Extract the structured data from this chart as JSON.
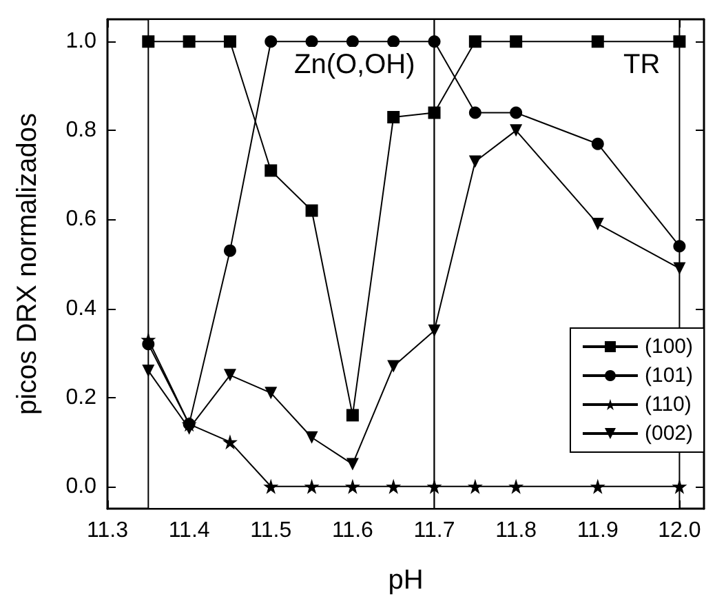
{
  "chart_data": {
    "type": "line",
    "xlabel": "pH",
    "ylabel": "picos DRX normalizados",
    "x": [
      11.35,
      11.4,
      11.45,
      11.5,
      11.55,
      11.6,
      11.65,
      11.7,
      11.75,
      11.8,
      11.9,
      12.0
    ],
    "series": [
      {
        "name": "(100)",
        "color": "#000000",
        "marker": "square",
        "values": [
          1,
          1,
          1,
          0.71,
          0.62,
          0.16,
          0.83,
          0.84,
          1,
          1,
          1,
          1
        ]
      },
      {
        "name": "(101)",
        "color": "#000000",
        "marker": "circle",
        "values": [
          0.32,
          0.14,
          0.53,
          1,
          1,
          1,
          1,
          1,
          0.84,
          0.84,
          0.77,
          0.54
        ]
      },
      {
        "name": "(110)",
        "color": "#000000",
        "marker": "star",
        "values": [
          0.33,
          0.14,
          0.1,
          0,
          0,
          0,
          0,
          0,
          0,
          0,
          0,
          0
        ]
      },
      {
        "name": "(002)",
        "color": "#000000",
        "marker": "triangle",
        "values": [
          0.26,
          0.13,
          0.25,
          0.21,
          0.11,
          0.05,
          0.27,
          0.35,
          0.73,
          0.8,
          0.59,
          0.49
        ]
      }
    ],
    "xlim": [
      11.3,
      12.03
    ],
    "xticks": [
      11.3,
      11.4,
      11.5,
      11.6,
      11.7,
      11.8,
      11.9,
      {
        "value": 12,
        "label": "12.0"
      }
    ],
    "ylim": [
      -0.05,
      1.05
    ],
    "yticks": [
      {
        "value": 0,
        "label": "0.0"
      },
      0.2,
      0.4,
      0.6,
      0.8,
      {
        "value": 1,
        "label": "1.0"
      }
    ],
    "bands": [
      {
        "axis": "x",
        "from": 11.35,
        "to": 11.7,
        "label": "Zn(O,OH)"
      },
      {
        "axis": "x",
        "from": 11.7,
        "to": 12.0,
        "label": "TR"
      }
    ],
    "legend": "bottom right",
    "grid": false,
    "line_style": "solid"
  }
}
